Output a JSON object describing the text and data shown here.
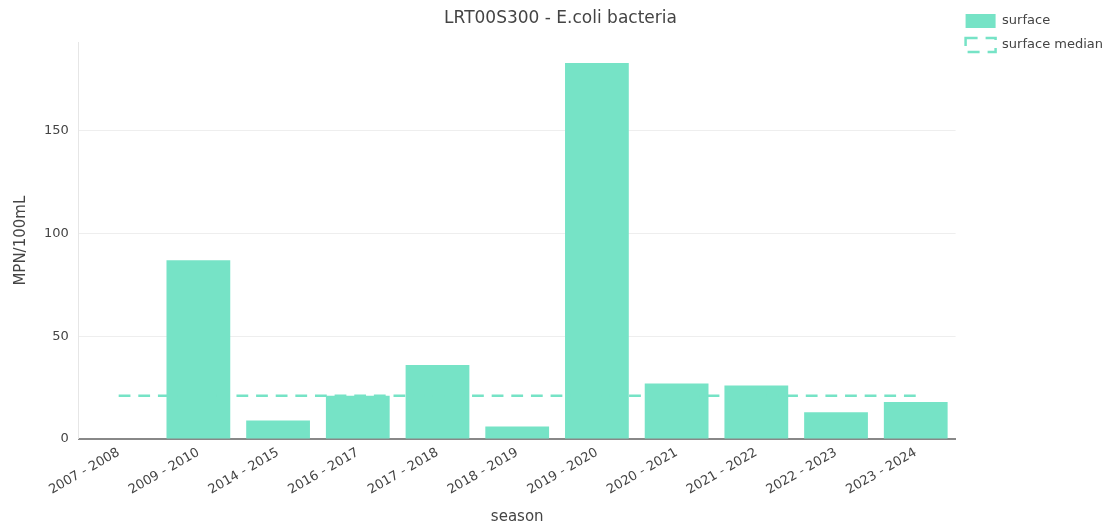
{
  "chart_data": {
    "type": "bar",
    "title": "LRT00S300 - E.coli bacteria",
    "xlabel": "season",
    "ylabel": "MPN/100mL",
    "categories": [
      "2007 - 2008",
      "2009 - 2010",
      "2014 - 2015",
      "2016 - 2017",
      "2017 - 2018",
      "2018 - 2019",
      "2019 - 2020",
      "2020 - 2021",
      "2021 - 2022",
      "2022 - 2023",
      "2023 - 2024"
    ],
    "series": [
      {
        "name": "surface",
        "color": "#76e3c6",
        "values": [
          0,
          87,
          9,
          21,
          36,
          6,
          183,
          27,
          26,
          13,
          18
        ]
      },
      {
        "name": "surface median",
        "type": "line",
        "color": "#76e3c6",
        "line_style": "dashed",
        "marker": "none",
        "values": [
          21,
          21,
          21,
          21,
          21,
          21,
          21,
          21,
          21,
          21,
          21
        ]
      }
    ],
    "ylim": [
      0,
      193
    ],
    "yticks": [
      0,
      50,
      100,
      150
    ],
    "grid": "y",
    "legend": "top right"
  }
}
